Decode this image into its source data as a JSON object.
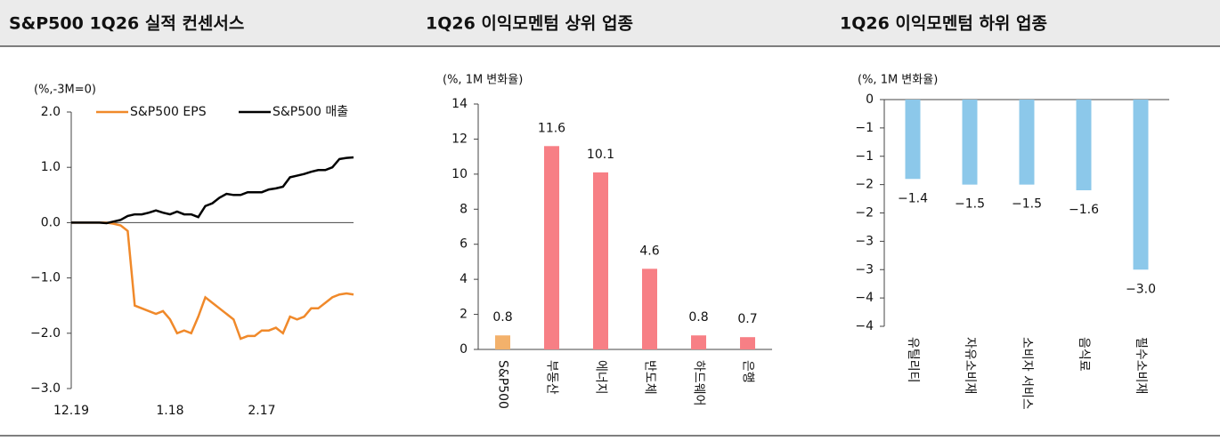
{
  "chart_data": [
    {
      "type": "line",
      "title": "S&P500 1Q26 실적 컨센서스",
      "subtitle": "(%,-3M=0)",
      "categories": [
        "12.19",
        null,
        null,
        null,
        null,
        null,
        null,
        null,
        null,
        null,
        null,
        null,
        null,
        null,
        "1.18",
        null,
        null,
        null,
        null,
        null,
        null,
        null,
        null,
        null,
        null,
        null,
        null,
        "2.17",
        null,
        null,
        null,
        null,
        null,
        null,
        null,
        null,
        null,
        null,
        null,
        null,
        null
      ],
      "series": [
        {
          "name": "S&P500 EPS",
          "color": "#f0892a",
          "values": [
            0,
            0,
            0,
            0,
            0,
            0,
            -0.02,
            -0.05,
            -0.15,
            -1.5,
            -1.55,
            -1.6,
            -1.65,
            -1.6,
            -1.75,
            -2.0,
            -1.95,
            -2.0,
            -1.7,
            -1.35,
            -1.45,
            -1.55,
            -1.65,
            -1.75,
            -2.1,
            -2.05,
            -2.05,
            -1.95,
            -1.95,
            -1.9,
            -2.0,
            -1.7,
            -1.75,
            -1.7,
            -1.55,
            -1.55,
            -1.45,
            -1.35,
            -1.3,
            -1.28,
            -1.3
          ]
        },
        {
          "name": "S&P500 매출",
          "color": "#000000",
          "values": [
            0,
            0,
            0,
            0,
            0,
            -0.01,
            0.02,
            0.05,
            0.12,
            0.15,
            0.15,
            0.18,
            0.22,
            0.18,
            0.15,
            0.2,
            0.15,
            0.15,
            0.1,
            0.3,
            0.35,
            0.45,
            0.52,
            0.5,
            0.5,
            0.55,
            0.55,
            0.55,
            0.6,
            0.62,
            0.65,
            0.82,
            0.85,
            0.88,
            0.92,
            0.95,
            0.95,
            1.0,
            1.15,
            1.17,
            1.18
          ]
        }
      ],
      "ylim": [
        -3,
        2
      ],
      "yticks": [
        {
          "value": 2,
          "label": "2.0"
        },
        {
          "value": 1,
          "label": "1.0"
        },
        {
          "value": 0,
          "label": "0.0"
        },
        {
          "value": -1,
          "label": "−1.0"
        },
        {
          "value": -2,
          "label": "−2.0"
        },
        {
          "value": -3,
          "label": "−3.0"
        }
      ],
      "legend": "top"
    },
    {
      "type": "bar",
      "title": "1Q26 이익모멘텀 상위 업종",
      "subtitle": "(%, 1M 변화율)",
      "categories": [
        "S&P500",
        "부동산",
        "에너지",
        "반도체",
        "하드웨어",
        "은행"
      ],
      "values": [
        0.8,
        11.6,
        10.1,
        4.6,
        0.8,
        0.7
      ],
      "colors": [
        "#f3b16b",
        "#f77f85",
        "#f77f85",
        "#f77f85",
        "#f77f85",
        "#f77f85"
      ],
      "ylim": [
        0,
        14
      ],
      "yticks": [
        0,
        2,
        4,
        6,
        8,
        10,
        12,
        14
      ]
    },
    {
      "type": "bar",
      "title": "1Q26 이익모멘텀 하위 업종",
      "subtitle": "(%, 1M 변화율)",
      "categories": [
        "유틸리티",
        "자유소비재",
        "소비자 서비스",
        "음식료",
        "필수소비재"
      ],
      "values": [
        -1.4,
        -1.5,
        -1.5,
        -1.6,
        -3.0
      ],
      "value_labels": [
        "−1.4",
        "−1.5",
        "−1.5",
        "−1.6",
        "−3.0"
      ],
      "colors": [
        "#8cc8ea",
        "#8cc8ea",
        "#8cc8ea",
        "#8cc8ea",
        "#8cc8ea"
      ],
      "ylim": [
        -4,
        0
      ],
      "yticks": [
        0,
        {
          "value": -0.5,
          "label": "−1"
        },
        {
          "value": -1,
          "label": "−1"
        },
        {
          "value": -1.5,
          "label": "−2"
        },
        {
          "value": -2,
          "label": "−2"
        },
        {
          "value": -2.5,
          "label": "−3"
        },
        {
          "value": -3,
          "label": "−3"
        },
        {
          "value": -3.5,
          "label": "−4"
        },
        {
          "value": -4,
          "label": "−4"
        }
      ]
    }
  ]
}
